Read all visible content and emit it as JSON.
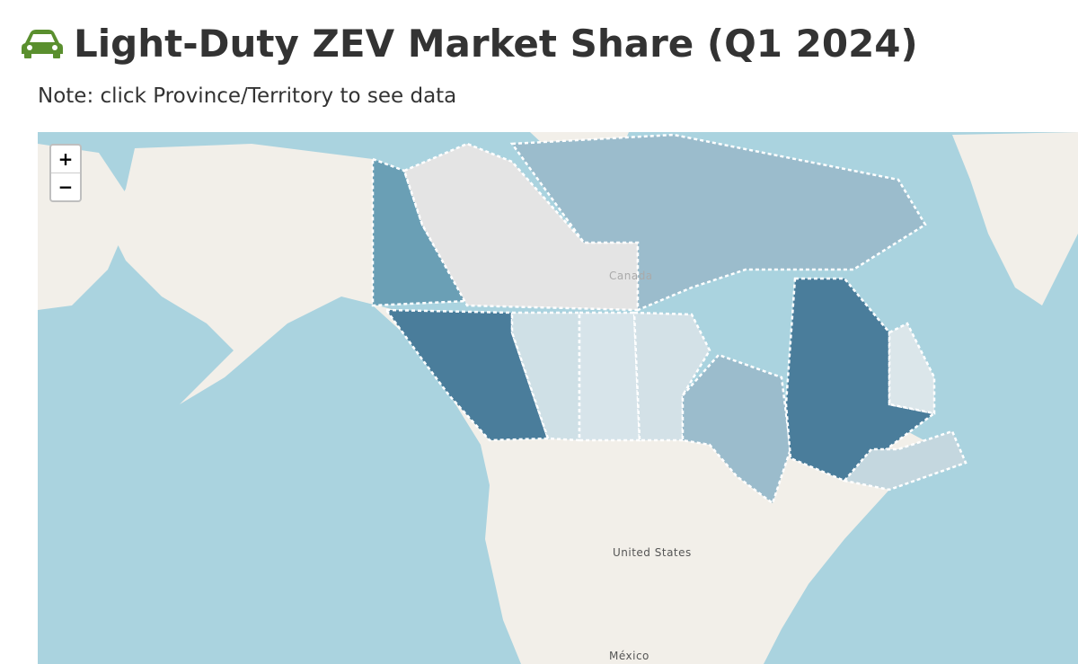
{
  "header": {
    "title": "Light-Duty ZEV Market Share (Q1 2024)",
    "note": "Note: click Province/Territory to see data"
  },
  "map": {
    "zoom_in": "+",
    "zoom_out": "−",
    "labels": [
      "Canada",
      "United States",
      "México"
    ]
  }
}
